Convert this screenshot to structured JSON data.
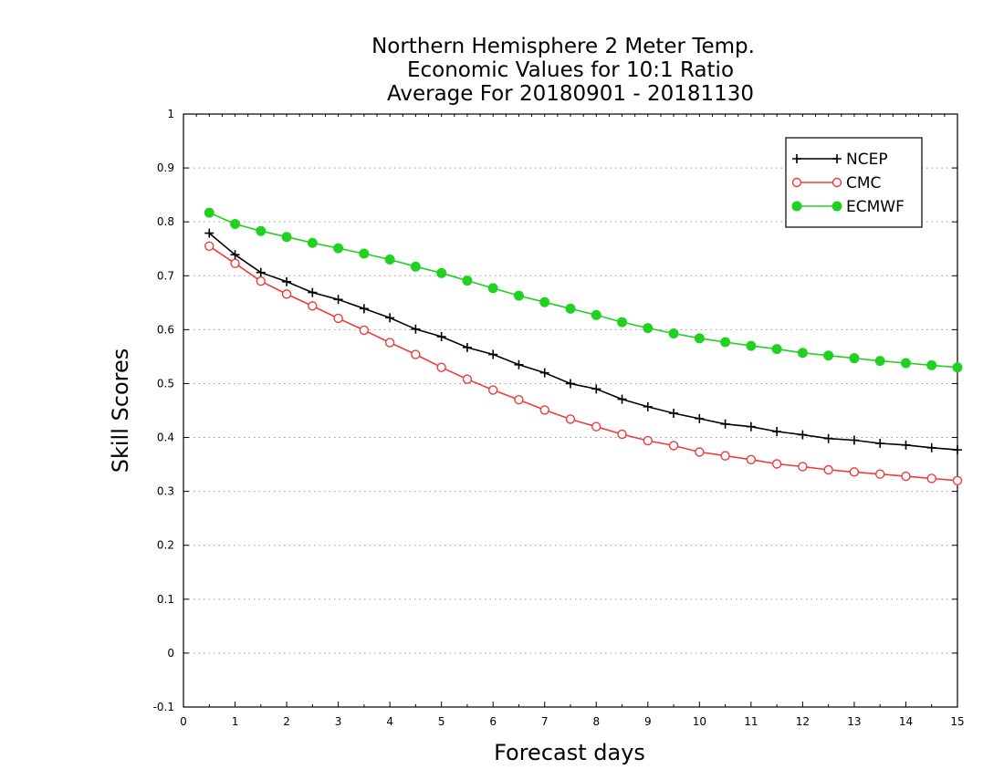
{
  "chart_data": {
    "type": "line",
    "title": [
      "Northern Hemisphere 2 Meter Temp.",
      "Economic Values for 10:1 Ratio",
      "Average For 20180901 - 20181130"
    ],
    "xlabel": "Forecast days",
    "ylabel": "Skill Scores",
    "xlim": [
      0,
      15
    ],
    "ylim": [
      -0.1,
      1
    ],
    "xticks": [
      0,
      1,
      2,
      3,
      4,
      5,
      6,
      7,
      8,
      9,
      10,
      11,
      12,
      13,
      14,
      15
    ],
    "yticks": [
      -0.1,
      0,
      0.1,
      0.2,
      0.3,
      0.4,
      0.5,
      0.6,
      0.7,
      0.8,
      0.9,
      1
    ],
    "ytick_labels": [
      "-0.1",
      "0",
      "0.1",
      "0.2",
      "0.3",
      "0.4",
      "0.5",
      "0.6",
      "0.7",
      "0.8",
      "0.9",
      "1"
    ],
    "grid": "horizontal dotted",
    "legend_position": "top-right",
    "x": [
      0.5,
      1,
      1.5,
      2,
      2.5,
      3,
      3.5,
      4,
      4.5,
      5,
      5.5,
      6,
      6.5,
      7,
      7.5,
      8,
      8.5,
      9,
      9.5,
      10,
      10.5,
      11,
      11.5,
      12,
      12.5,
      13,
      13.5,
      14,
      14.5,
      15
    ],
    "series": [
      {
        "name": "NCEP",
        "color": "#000000",
        "marker": "plus",
        "values": [
          0.779,
          0.739,
          0.706,
          0.689,
          0.669,
          0.656,
          0.639,
          0.622,
          0.601,
          0.587,
          0.567,
          0.554,
          0.535,
          0.52,
          0.5,
          0.49,
          0.471,
          0.457,
          0.445,
          0.435,
          0.425,
          0.42,
          0.411,
          0.405,
          0.398,
          0.395,
          0.389,
          0.386,
          0.381,
          0.377
        ]
      },
      {
        "name": "CMC",
        "color": "#ee3c3c",
        "marker": "open-circle",
        "values": [
          0.755,
          0.723,
          0.69,
          0.666,
          0.644,
          0.621,
          0.599,
          0.576,
          0.554,
          0.53,
          0.508,
          0.488,
          0.47,
          0.451,
          0.434,
          0.42,
          0.406,
          0.394,
          0.385,
          0.373,
          0.366,
          0.359,
          0.351,
          0.346,
          0.34,
          0.336,
          0.332,
          0.328,
          0.324,
          0.32
        ]
      },
      {
        "name": "ECMWF",
        "color": "#22d022",
        "marker": "filled-circle",
        "values": [
          0.817,
          0.796,
          0.783,
          0.772,
          0.761,
          0.751,
          0.741,
          0.73,
          0.717,
          0.705,
          0.691,
          0.677,
          0.663,
          0.651,
          0.639,
          0.627,
          0.614,
          0.603,
          0.593,
          0.584,
          0.577,
          0.57,
          0.564,
          0.557,
          0.552,
          0.547,
          0.542,
          0.538,
          0.534,
          0.53
        ]
      }
    ]
  }
}
